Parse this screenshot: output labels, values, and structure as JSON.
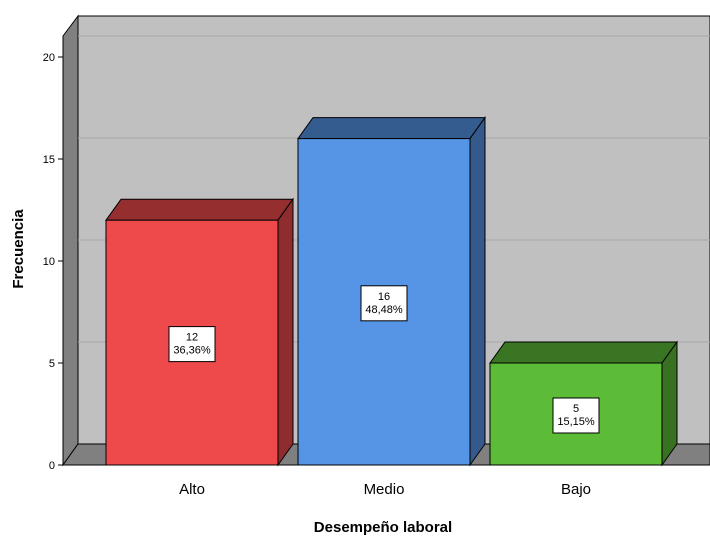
{
  "chart_data": {
    "type": "bar",
    "style": "3d",
    "categories": [
      "Alto",
      "Medio",
      "Bajo"
    ],
    "values": [
      12,
      16,
      5
    ],
    "percent_labels": [
      "36,36%",
      "48,48%",
      "15,15%"
    ],
    "value_labels": [
      "12",
      "16",
      "5"
    ],
    "colors": [
      "#ee4a4c",
      "#5695e6",
      "#5cbc37"
    ],
    "xlabel": "Desempeño laboral",
    "ylabel": "Frecuencia",
    "ylim": [
      0,
      20
    ],
    "yticks": [
      "0",
      "5",
      "10",
      "15",
      "20"
    ],
    "grid": true,
    "background_color": "#c0c0c0"
  }
}
